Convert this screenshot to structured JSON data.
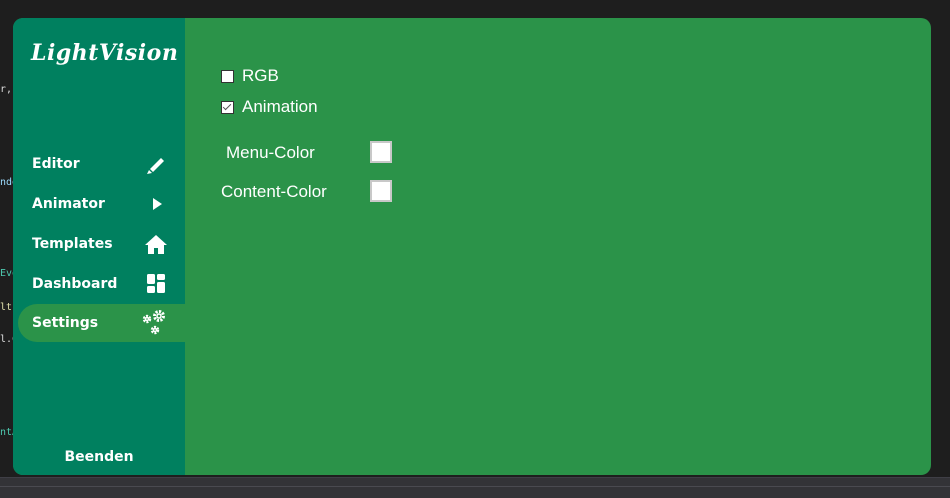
{
  "background_code": [
    "r,",
    "nde",
    "Eve",
    "lt.",
    "l.C",
    "ntA"
  ],
  "app": {
    "logo": "LightVision"
  },
  "sidebar": {
    "items": [
      {
        "label": "Editor",
        "icon": "pencil-icon"
      },
      {
        "label": "Animator",
        "icon": "play-icon"
      },
      {
        "label": "Templates",
        "icon": "home-icon"
      },
      {
        "label": "Dashboard",
        "icon": "dashboard-icon"
      },
      {
        "label": "Settings",
        "icon": "gears-icon",
        "active": true
      }
    ],
    "quit_label": "Beenden"
  },
  "settings": {
    "rgb": {
      "label": "RGB",
      "checked": false
    },
    "animation": {
      "label": "Animation",
      "checked": true
    },
    "menu_color": {
      "label": "Menu-Color",
      "value": "#ffffff"
    },
    "content_color": {
      "label": "Content-Color",
      "value": "#ffffff"
    }
  },
  "colors": {
    "sidebar": "#00805f",
    "content": "#2b9349"
  }
}
